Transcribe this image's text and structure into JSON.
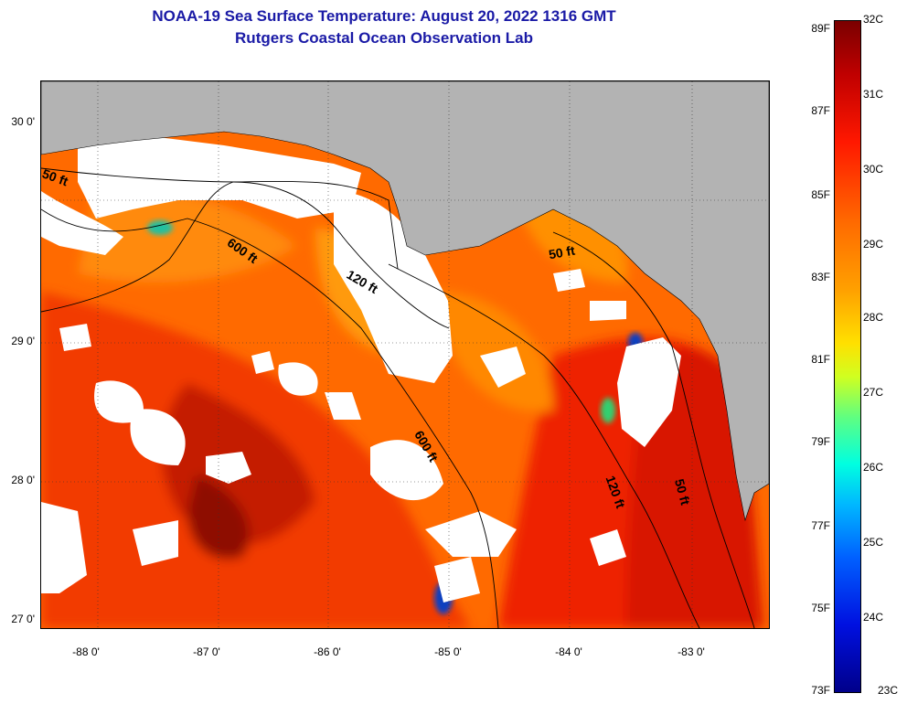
{
  "header": {
    "title": "NOAA-19 Sea Surface Temperature:  August 20, 2022 1316 GMT",
    "subtitle": "Rutgers Coastal Ocean Observation Lab"
  },
  "map": {
    "lat_labels": [
      "30 0'",
      "29 0'",
      "28 0'",
      "27 0'"
    ],
    "lon_labels": [
      "-88 0'",
      "-87 0'",
      "-86 0'",
      "-85 0'",
      "-84 0'",
      "-83 0'"
    ],
    "contours": {
      "c50w": "50 ft",
      "c600a": "600 ft",
      "c120a": "120 ft",
      "c50n": "50 ft",
      "c600b": "600 ft",
      "c120b": "120 ft",
      "c50e": "50 ft"
    },
    "colors": {
      "land": "#b3b3b3",
      "cloud": "#ffffff",
      "warm": "#ff5a00"
    }
  },
  "colorbar": {
    "fahrenheit": [
      "89F",
      "87F",
      "85F",
      "83F",
      "81F",
      "79F",
      "77F",
      "75F",
      "73F"
    ],
    "celsius": [
      "32C",
      "31C",
      "30C",
      "29C",
      "28C",
      "27C",
      "26C",
      "25C",
      "24C",
      "23C"
    ]
  }
}
